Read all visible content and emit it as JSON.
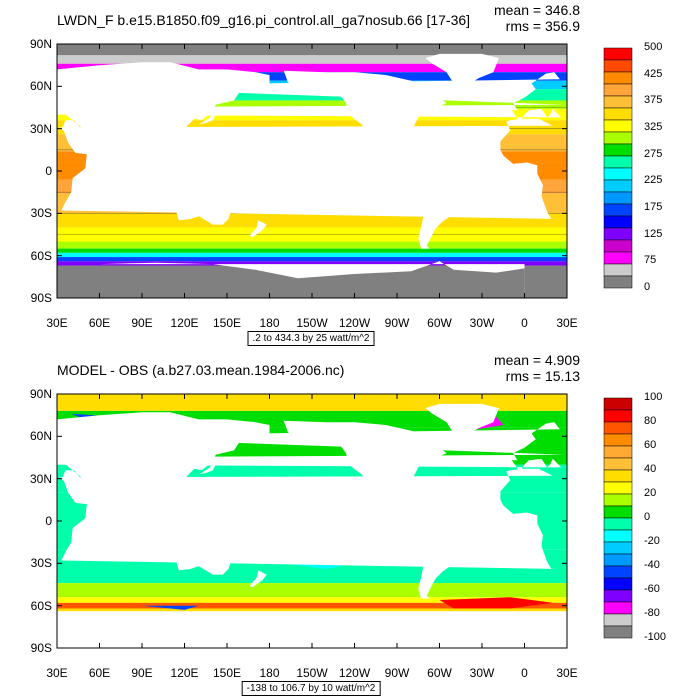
{
  "chart_data": [
    {
      "type": "heatmap",
      "title": "LWDN_F b.e15.B1850.f09_g16.pi_control.all_ga7nosub.66 [17-36]",
      "mean_label": "mean = 346.8",
      "rms_label": "rms = 356.9",
      "caption": ".2 to 434.3 by 25 watt/m^2",
      "y_ticks": [
        "90N",
        "60N",
        "30N",
        "0",
        "30S",
        "60S",
        "90S"
      ],
      "x_ticks": [
        "30E",
        "60E",
        "90E",
        "120E",
        "150E",
        "180",
        "150W",
        "120W",
        "90W",
        "60W",
        "30W",
        "0",
        "30E"
      ],
      "colorbar_labels": [
        "500",
        "425",
        "375",
        "325",
        "275",
        "225",
        "175",
        "125",
        "75",
        "0"
      ],
      "colors": [
        "#ff0000",
        "#ff4a00",
        "#ff8c00",
        "#ffa53a",
        "#ffc038",
        "#ffdd00",
        "#ffff00",
        "#aaff00",
        "#00dd00",
        "#00ffaa",
        "#00ffff",
        "#00ccff",
        "#0099ff",
        "#0044ff",
        "#0000ff",
        "#8000ff",
        "#cc00cc",
        "#ff00ff",
        "#cccccc",
        "#808080"
      ]
    },
    {
      "type": "heatmap",
      "title": "MODEL - OBS (a.b27.03.mean.1984-2006.nc)",
      "mean_label": "mean = 4.909",
      "rms_label": "rms = 15.13",
      "caption": "-138 to 106.7 by 10 watt/m^2",
      "y_ticks": [
        "90N",
        "60N",
        "30N",
        "0",
        "30S",
        "60S",
        "90S"
      ],
      "x_ticks": [
        "30E",
        "60E",
        "90E",
        "120E",
        "150E",
        "180",
        "150W",
        "120W",
        "90W",
        "60W",
        "30W",
        "0",
        "30E"
      ],
      "colorbar_labels": [
        "100",
        "80",
        "60",
        "40",
        "20",
        "0",
        "-20",
        "-40",
        "-60",
        "-80",
        "-100"
      ],
      "colors": [
        "#cc0000",
        "#ff0000",
        "#ff5500",
        "#ff8c00",
        "#ffaa33",
        "#ffc038",
        "#ffdd00",
        "#ffff00",
        "#aaff00",
        "#00dd00",
        "#00ffaa",
        "#00ffff",
        "#00ccff",
        "#0099ff",
        "#0044ff",
        "#0000ff",
        "#8000ff",
        "#ff00ff",
        "#cccccc",
        "#808080"
      ]
    }
  ]
}
